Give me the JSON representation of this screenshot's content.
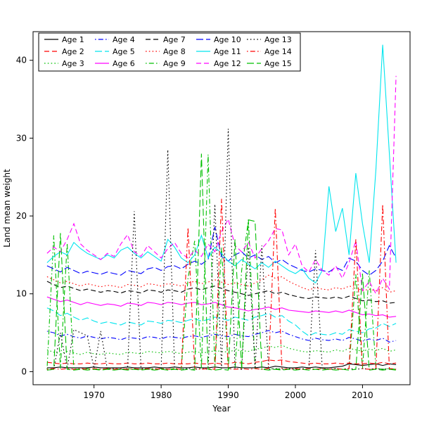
{
  "figure": {
    "background": "#ffffff"
  },
  "chart_data": {
    "type": "line",
    "title": "",
    "xlabel": "Year",
    "ylabel": "Land mean weight",
    "xlim": [
      1963,
      2015
    ],
    "ylim": [
      0,
      42
    ],
    "xticks": [
      1970,
      1980,
      1990,
      2000,
      2010
    ],
    "yticks": [
      0,
      10,
      20,
      30,
      40
    ],
    "grid": false,
    "legend_position": "top-left",
    "legend_columns": 5,
    "x": [
      1963,
      1964,
      1965,
      1966,
      1967,
      1968,
      1969,
      1970,
      1971,
      1972,
      1973,
      1974,
      1975,
      1976,
      1977,
      1978,
      1979,
      1980,
      1981,
      1982,
      1983,
      1984,
      1985,
      1986,
      1987,
      1988,
      1989,
      1990,
      1991,
      1992,
      1993,
      1994,
      1995,
      1996,
      1997,
      1998,
      1999,
      2000,
      2001,
      2002,
      2003,
      2004,
      2005,
      2006,
      2007,
      2008,
      2009,
      2010,
      2011,
      2012,
      2013,
      2014,
      2015
    ],
    "series": [
      {
        "name": "Age 1",
        "color": "#000000",
        "line_style": "solid",
        "values": [
          0.5,
          0.5,
          0.6,
          0.5,
          0.5,
          0.5,
          0.5,
          0.6,
          0.5,
          0.5,
          0.5,
          0.5,
          0.6,
          0.5,
          0.5,
          0.5,
          0.6,
          0.5,
          0.5,
          0.6,
          0.5,
          0.5,
          0.6,
          0.5,
          0.5,
          0.6,
          0.5,
          0.5,
          0.6,
          0.5,
          0.5,
          0.5,
          0.6,
          0.5,
          0.7,
          0.6,
          0.5,
          0.5,
          0.6,
          0.5,
          0.6,
          0.5,
          0.5,
          0.6,
          0.7,
          1.0,
          0.9,
          0.8,
          0.9,
          1.0,
          0.8,
          1.0,
          0.9
        ]
      },
      {
        "name": "Age 2",
        "color": "#FF0000",
        "line_style": "dashed",
        "values": [
          1.2,
          1.1,
          1.0,
          1.1,
          1.0,
          1.0,
          1.1,
          1.0,
          1.0,
          1.1,
          1.0,
          1.0,
          1.1,
          1.0,
          1.0,
          1.1,
          1.0,
          1.0,
          1.1,
          1.0,
          1.0,
          1.0,
          1.1,
          1.0,
          1.0,
          1.1,
          1.0,
          1.0,
          1.2,
          1.1,
          1.0,
          1.2,
          1.3,
          1.5,
          1.4,
          1.5,
          1.3,
          1.2,
          1.1,
          1.0,
          1.1,
          1.0,
          1.0,
          1.1,
          1.0,
          1.1,
          1.0,
          1.0,
          1.1,
          1.0,
          1.2,
          1.0,
          1.1
        ]
      },
      {
        "name": "Age 3",
        "color": "#00BF00",
        "line_style": "dotted",
        "values": [
          2.8,
          2.5,
          2.3,
          2.6,
          2.4,
          2.2,
          2.5,
          2.3,
          2.2,
          2.4,
          2.3,
          2.2,
          2.5,
          2.4,
          2.3,
          2.6,
          2.5,
          2.4,
          2.6,
          2.5,
          2.3,
          2.5,
          2.6,
          2.4,
          2.5,
          2.7,
          2.6,
          2.5,
          2.8,
          2.7,
          2.6,
          2.9,
          3.0,
          3.3,
          3.1,
          3.4,
          3.0,
          2.8,
          2.6,
          2.5,
          2.7,
          2.6,
          2.5,
          2.8,
          2.6,
          3.0,
          2.8,
          2.6,
          2.9,
          2.7,
          3.0,
          2.6,
          2.8
        ]
      },
      {
        "name": "Age 4",
        "color": "#0000FF",
        "line_style": "dotdash",
        "values": [
          5.2,
          5.0,
          4.6,
          4.8,
          4.5,
          4.3,
          4.6,
          4.4,
          4.2,
          4.4,
          4.3,
          4.1,
          4.4,
          4.3,
          4.2,
          4.5,
          4.4,
          4.2,
          4.5,
          4.4,
          4.3,
          4.5,
          4.6,
          4.4,
          4.6,
          4.8,
          4.6,
          4.5,
          4.8,
          4.6,
          4.5,
          4.8,
          5.0,
          5.3,
          5.0,
          5.2,
          4.8,
          4.5,
          4.2,
          4.0,
          4.3,
          4.1,
          4.0,
          4.2,
          4.0,
          4.4,
          4.2,
          3.9,
          4.2,
          4.0,
          4.3,
          3.8,
          4.0
        ]
      },
      {
        "name": "Age 5",
        "color": "#00E5EE",
        "line_style": "longdash",
        "values": [
          8.2,
          7.8,
          7.2,
          7.5,
          7.0,
          6.6,
          6.9,
          6.5,
          6.2,
          6.4,
          6.2,
          6.0,
          6.4,
          6.2,
          6.0,
          6.5,
          6.4,
          6.2,
          6.6,
          6.5,
          6.3,
          6.6,
          6.8,
          6.5,
          6.7,
          7.0,
          6.8,
          6.6,
          7.0,
          6.8,
          6.6,
          7.0,
          7.2,
          7.5,
          7.0,
          7.2,
          6.5,
          6.0,
          5.2,
          4.6,
          5.0,
          4.8,
          4.7,
          5.0,
          4.8,
          5.4,
          5.2,
          5.0,
          5.5,
          5.6,
          6.2,
          5.8,
          6.2
        ]
      },
      {
        "name": "Age 6",
        "color": "#FF00FF",
        "line_style": "solid",
        "values": [
          9.6,
          9.3,
          9.0,
          9.2,
          8.9,
          8.6,
          8.9,
          8.7,
          8.5,
          8.7,
          8.6,
          8.4,
          8.8,
          8.7,
          8.5,
          8.9,
          8.8,
          8.6,
          8.9,
          8.8,
          8.6,
          8.8,
          8.9,
          8.6,
          8.7,
          8.9,
          8.6,
          8.3,
          8.2,
          8.0,
          7.8,
          8.0,
          8.1,
          8.3,
          8.0,
          8.2,
          7.9,
          7.8,
          7.7,
          7.6,
          7.8,
          7.7,
          7.6,
          7.8,
          7.6,
          7.9,
          7.6,
          7.3,
          7.4,
          7.2,
          7.3,
          7.0,
          7.1
        ]
      },
      {
        "name": "Age 7",
        "color": "#000000",
        "line_style": "dashed",
        "values": [
          11.6,
          11.2,
          10.8,
          11.0,
          10.7,
          10.4,
          10.6,
          10.4,
          10.2,
          10.4,
          10.3,
          10.1,
          10.4,
          10.3,
          10.1,
          10.5,
          10.4,
          10.2,
          10.5,
          10.4,
          10.2,
          10.6,
          10.8,
          10.5,
          10.8,
          11.0,
          10.7,
          10.4,
          10.2,
          10.0,
          9.8,
          10.0,
          10.2,
          10.4,
          10.0,
          10.2,
          9.9,
          9.7,
          9.5,
          9.4,
          9.6,
          9.5,
          9.4,
          9.6,
          9.4,
          9.7,
          9.4,
          9.1,
          9.2,
          9.0,
          9.1,
          8.8,
          8.9
        ]
      },
      {
        "name": "Age 8",
        "color": "#FF0000",
        "line_style": "dotted",
        "values": [
          12.2,
          11.8,
          11.4,
          11.6,
          11.3,
          11.0,
          11.3,
          11.1,
          10.9,
          11.1,
          11.0,
          10.8,
          11.2,
          11.1,
          10.9,
          11.3,
          11.2,
          11.0,
          11.3,
          11.2,
          11.0,
          11.4,
          11.6,
          11.3,
          11.5,
          11.8,
          11.5,
          11.2,
          11.4,
          11.2,
          11.0,
          11.4,
          11.8,
          12.4,
          12.0,
          12.2,
          11.6,
          11.2,
          10.8,
          10.5,
          10.8,
          10.6,
          10.5,
          10.8,
          10.6,
          11.0,
          10.8,
          10.4,
          10.6,
          10.4,
          10.8,
          10.2,
          10.4
        ]
      },
      {
        "name": "Age 9",
        "color": "#00BF00",
        "line_style": "dotdash",
        "values": [
          0.3,
          17.5,
          0.4,
          16.5,
          0.3,
          0.3,
          0.4,
          0.3,
          0.3,
          0.4,
          0.3,
          0.3,
          0.4,
          0.3,
          0.3,
          0.4,
          0.3,
          0.4,
          0.3,
          0.4,
          0.3,
          12.0,
          16.8,
          0.4,
          27.9,
          0.4,
          16.0,
          0.4,
          0.3,
          13.0,
          19.5,
          0.4,
          0.3,
          0.4,
          0.3,
          0.4,
          0.3,
          0.4,
          0.3,
          0.4,
          0.3,
          0.4,
          0.3,
          0.4,
          0.3,
          0.4,
          12.5,
          0.4,
          13.0,
          0.4,
          0.3,
          0.4,
          0.3
        ]
      },
      {
        "name": "Age 10",
        "color": "#0000FF",
        "line_style": "longdash",
        "values": [
          13.6,
          13.2,
          12.8,
          13.4,
          13.0,
          12.6,
          12.9,
          12.7,
          12.5,
          12.8,
          12.6,
          12.4,
          13.0,
          12.8,
          12.6,
          13.2,
          13.4,
          13.0,
          13.5,
          13.6,
          13.2,
          13.8,
          14.2,
          13.8,
          14.4,
          18.6,
          14.8,
          14.2,
          15.0,
          15.4,
          14.6,
          15.0,
          14.4,
          14.8,
          14.0,
          14.4,
          13.8,
          13.4,
          13.0,
          12.8,
          13.2,
          13.0,
          12.8,
          13.4,
          13.0,
          14.6,
          14.2,
          13.0,
          12.4,
          13.0,
          14.2,
          16.2,
          14.6
        ]
      },
      {
        "name": "Age 11",
        "color": "#00E5EE",
        "line_style": "solid",
        "values": [
          14.0,
          14.8,
          15.4,
          15.0,
          16.6,
          15.8,
          15.2,
          14.8,
          14.4,
          15.0,
          14.6,
          15.6,
          16.0,
          15.2,
          14.6,
          15.4,
          14.8,
          14.2,
          17.0,
          16.0,
          14.6,
          14.0,
          15.0,
          17.5,
          14.6,
          16.0,
          15.2,
          14.2,
          13.6,
          14.4,
          13.8,
          13.2,
          14.0,
          13.4,
          14.2,
          13.6,
          13.0,
          12.6,
          13.2,
          12.0,
          11.4,
          13.0,
          23.8,
          18.0,
          21.0,
          15.0,
          25.5,
          19.0,
          14.0,
          26.0,
          42.0,
          28.0,
          14.0
        ]
      },
      {
        "name": "Age 12",
        "color": "#FF00FF",
        "line_style": "dashed",
        "values": [
          15.2,
          16.0,
          15.4,
          17.0,
          19.0,
          16.4,
          15.6,
          15.0,
          14.4,
          15.2,
          14.8,
          16.4,
          17.6,
          15.4,
          14.8,
          16.2,
          15.4,
          14.6,
          15.8,
          16.6,
          15.2,
          14.6,
          15.6,
          14.8,
          16.4,
          15.4,
          18.0,
          19.6,
          16.2,
          15.4,
          16.6,
          14.6,
          15.8,
          16.8,
          18.4,
          18.2,
          15.0,
          16.4,
          13.6,
          12.8,
          14.4,
          13.0,
          12.4,
          13.6,
          12.0,
          14.0,
          16.8,
          10.4,
          11.6,
          10.0,
          12.0,
          10.6,
          38.0
        ]
      },
      {
        "name": "Age 13",
        "color": "#000000",
        "line_style": "dotted",
        "values": [
          0.2,
          0.3,
          5.0,
          0.4,
          5.4,
          5.0,
          4.6,
          0.4,
          5.2,
          0.3,
          0.4,
          0.3,
          0.4,
          20.6,
          0.4,
          0.3,
          0.4,
          0.3,
          28.5,
          0.4,
          0.3,
          0.4,
          0.3,
          0.4,
          0.3,
          21.5,
          0.4,
          31.2,
          0.4,
          0.3,
          16.0,
          0.4,
          16.2,
          0.3,
          0.4,
          0.3,
          0.4,
          0.3,
          0.4,
          0.3,
          15.6,
          0.4,
          0.3,
          0.4,
          0.3,
          0.4,
          0.3,
          0.4,
          0.3,
          0.4,
          0.3,
          0.4,
          0.3
        ]
      },
      {
        "name": "Age 14",
        "color": "#FF0000",
        "line_style": "dotdash",
        "values": [
          0.3,
          0.4,
          0.3,
          0.4,
          0.3,
          0.4,
          0.3,
          0.4,
          0.3,
          0.4,
          0.3,
          0.4,
          0.3,
          0.4,
          0.3,
          0.4,
          0.3,
          0.4,
          0.3,
          0.4,
          0.3,
          18.5,
          0.4,
          0.3,
          0.4,
          0.3,
          22.2,
          0.4,
          0.3,
          0.4,
          0.3,
          0.4,
          0.3,
          0.4,
          21.0,
          0.4,
          0.3,
          0.4,
          0.3,
          0.4,
          0.3,
          0.4,
          0.3,
          0.4,
          0.3,
          0.4,
          17.0,
          0.4,
          0.3,
          0.4,
          21.5,
          0.4,
          0.3
        ]
      },
      {
        "name": "Age 15",
        "color": "#00BF00",
        "line_style": "longdash",
        "values": [
          0.2,
          0.3,
          17.8,
          0.3,
          0.2,
          0.3,
          0.2,
          0.3,
          0.2,
          0.3,
          0.2,
          0.3,
          0.2,
          0.3,
          0.2,
          0.3,
          0.2,
          0.3,
          0.2,
          0.3,
          0.2,
          0.3,
          0.2,
          28.0,
          0.3,
          0.2,
          0.3,
          0.2,
          17.0,
          0.3,
          19.5,
          19.3,
          0.3,
          0.2,
          0.3,
          0.2,
          0.3,
          0.2,
          0.3,
          0.2,
          0.3,
          0.2,
          0.3,
          0.2,
          0.3,
          0.2,
          0.3,
          12.6,
          0.2,
          0.3,
          0.2,
          0.3,
          0.2
        ]
      }
    ]
  }
}
